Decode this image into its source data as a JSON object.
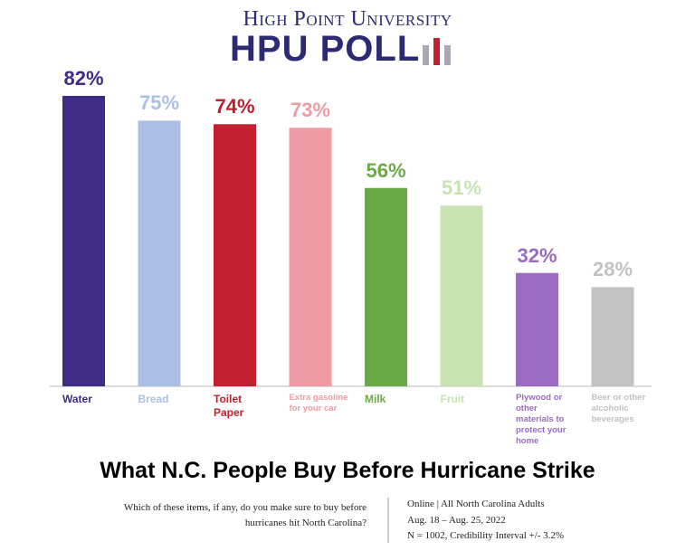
{
  "header": {
    "university": "High Point University",
    "poll": "HPU POLL"
  },
  "chart_data": {
    "type": "bar",
    "title": "What N.C. People Buy Before Hurricane Strike",
    "categories": [
      "Water",
      "Bread",
      "Toilet Paper",
      "Extra gasoline for your car",
      "Milk",
      "Fruit",
      "Plywood or other materials to protect your home",
      "Beer or other alcoholic beverages"
    ],
    "values": [
      82,
      75,
      74,
      73,
      56,
      51,
      32,
      28
    ],
    "value_labels": [
      "82%",
      "75%",
      "74%",
      "73%",
      "56%",
      "51%",
      "32%",
      "28%"
    ],
    "colors": [
      "#3f2a85",
      "#abc0e4",
      "#c0202f",
      "#ef9ba3",
      "#69aa45",
      "#c6e3b1",
      "#9a6bc0",
      "#c2c2c2"
    ],
    "ylim": [
      0,
      100
    ],
    "question": "Which of these items, if any, do you make sure to buy before hurricanes hit North Carolina?",
    "notes": [
      "Online | All North Carolina Adults",
      "Aug. 18 – Aug. 25, 2022",
      "N = 1002, Credibility Interval +/- 3.2%"
    ]
  }
}
